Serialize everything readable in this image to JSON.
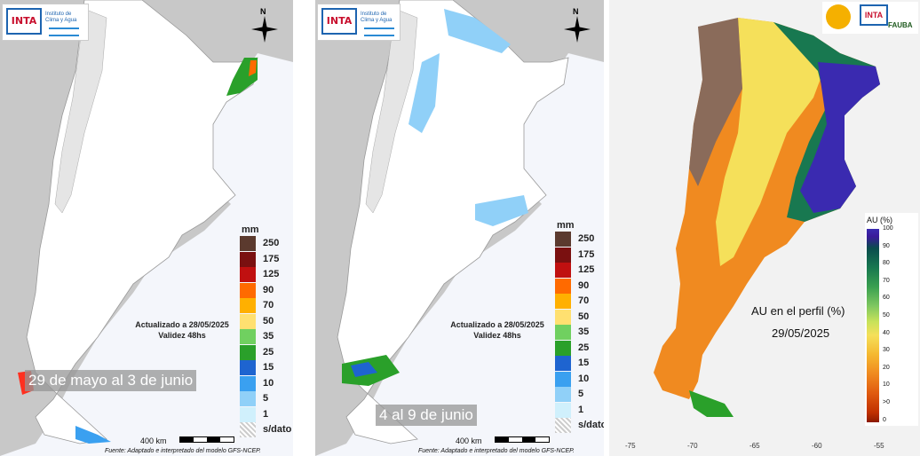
{
  "panel1": {
    "logo_inta": "INTA",
    "logo_institute": "Instituto de Clima y Agua",
    "north": "N",
    "legend_unit": "mm",
    "legend_labels": [
      "250",
      "175",
      "125",
      "90",
      "70",
      "50",
      "35",
      "25",
      "15",
      "10",
      "5",
      "1",
      "s/dato"
    ],
    "legend_colors": [
      "#5b3a2e",
      "#7a1010",
      "#c01010",
      "#ff6a00",
      "#ffb000",
      "#ffe070",
      "#70d060",
      "#2aa02a",
      "#1e64d0",
      "#3aa0f0",
      "#90d0f8",
      "#d0f0fc",
      "#e0e0e0"
    ],
    "updated": "Actualizado a 28/05/2025",
    "validity": "Validez 48hs",
    "period": "29 de mayo al 3 de junio",
    "scale": "400 km",
    "source": "Fuente: Adaptado e interpretado del modelo GFS-NCEP."
  },
  "panel2": {
    "logo_inta": "INTA",
    "logo_institute": "Instituto de Clima y Agua",
    "north": "N",
    "legend_unit": "mm",
    "legend_labels": [
      "250",
      "175",
      "125",
      "90",
      "70",
      "50",
      "35",
      "25",
      "15",
      "10",
      "5",
      "1",
      "s/dato"
    ],
    "updated": "Actualizado a 28/05/2025",
    "validity": "Validez 48hs",
    "period": "4 al 9 de junio",
    "scale": "400 km",
    "source": "Fuente: Adaptado e interpretado del modelo GFS-NCEP."
  },
  "panel3": {
    "logo_inta": "INTA",
    "logo_fauba": "FAUBA",
    "legend_title": "AU (%)",
    "legend_ticks": [
      "100",
      "90",
      "80",
      "70",
      "60",
      "50",
      "40",
      "30",
      "20",
      "10",
      ">0",
      "0"
    ],
    "map_title": "AU en el perfil (%)",
    "map_date": "29/05/2025",
    "axis_x": [
      "-75",
      "-70",
      "-65",
      "-60",
      "-55"
    ]
  }
}
